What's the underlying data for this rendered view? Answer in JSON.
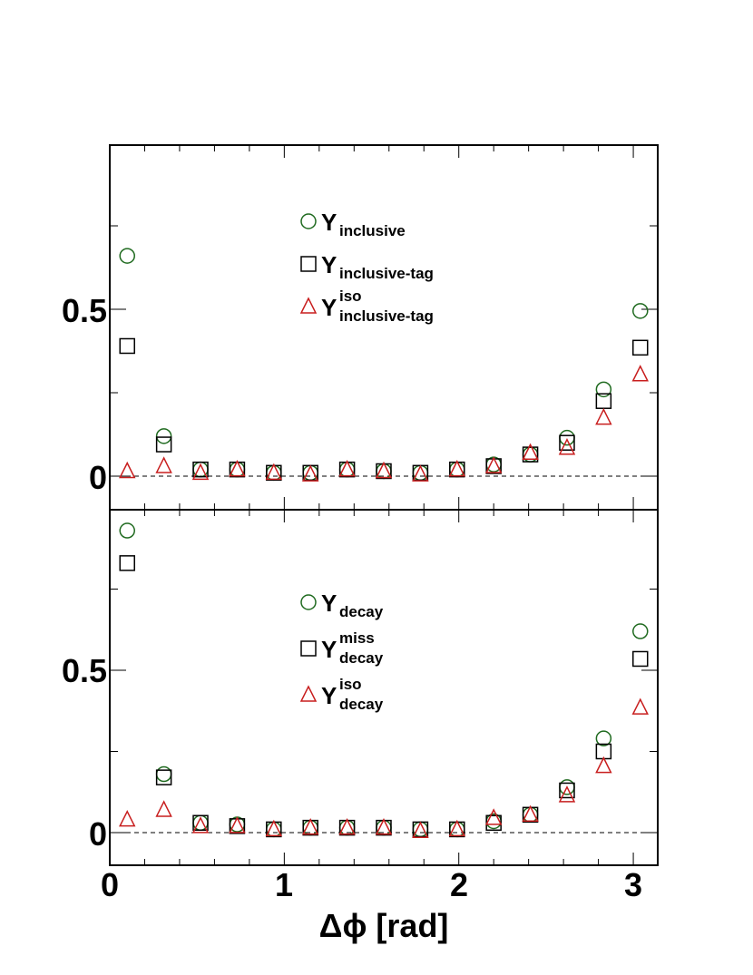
{
  "chart_data": [
    {
      "type": "scatter",
      "panel": "top",
      "x": [
        0.1,
        0.31,
        0.52,
        0.73,
        0.94,
        1.15,
        1.36,
        1.57,
        1.78,
        1.99,
        2.2,
        2.41,
        2.62,
        2.83,
        3.04
      ],
      "ylim": [
        -0.1,
        1.0
      ],
      "yticks": [
        "0",
        "0.5"
      ],
      "y_reference_line": 0,
      "legend_position": "top-center",
      "series": [
        {
          "name": "Y",
          "sub": "inclusive",
          "sup": "",
          "marker": "circle",
          "color": "#1f6a1f",
          "values": [
            0.66,
            0.12,
            0.02,
            0.02,
            0.01,
            0.01,
            0.02,
            0.015,
            0.01,
            0.02,
            0.035,
            0.065,
            0.115,
            0.26,
            0.495
          ]
        },
        {
          "name": "Y",
          "sub": "inclusive-tag",
          "sup": "",
          "marker": "square",
          "color": "#000000",
          "values": [
            0.39,
            0.095,
            0.02,
            0.02,
            0.01,
            0.01,
            0.02,
            0.015,
            0.01,
            0.02,
            0.03,
            0.065,
            0.1,
            0.225,
            0.385
          ]
        },
        {
          "name": "Y",
          "sub": "inclusive-tag",
          "sup": "iso",
          "marker": "triangle",
          "color": "#c81e1e",
          "values": [
            0.015,
            0.03,
            0.01,
            0.02,
            0.01,
            0.005,
            0.02,
            0.015,
            0.005,
            0.02,
            0.03,
            0.07,
            0.085,
            0.175,
            0.305
          ]
        }
      ]
    },
    {
      "type": "scatter",
      "panel": "bottom",
      "x": [
        0.1,
        0.31,
        0.52,
        0.73,
        0.94,
        1.15,
        1.36,
        1.57,
        1.78,
        1.99,
        2.2,
        2.41,
        2.62,
        2.83,
        3.04
      ],
      "xlim": [
        0,
        3.14
      ],
      "ylim": [
        -0.1,
        1.0
      ],
      "xticks": [
        "0",
        "1",
        "2",
        "3"
      ],
      "yticks": [
        "0",
        "0.5"
      ],
      "xlabel": "Δϕ [rad]",
      "y_reference_line": 0,
      "legend_position": "center",
      "series": [
        {
          "name": "Y",
          "sub": "decay",
          "sup": "",
          "marker": "circle",
          "color": "#1f6a1f",
          "values": [
            0.93,
            0.18,
            0.03,
            0.025,
            0.01,
            0.015,
            0.015,
            0.015,
            0.01,
            0.01,
            0.035,
            0.055,
            0.14,
            0.29,
            0.62
          ]
        },
        {
          "name": "Y",
          "sub": "decay",
          "sup": "miss",
          "marker": "square",
          "color": "#000000",
          "values": [
            0.83,
            0.17,
            0.03,
            0.02,
            0.01,
            0.015,
            0.015,
            0.015,
            0.01,
            0.01,
            0.03,
            0.055,
            0.13,
            0.25,
            0.535
          ]
        },
        {
          "name": "Y",
          "sub": "decay",
          "sup": "iso",
          "marker": "triangle",
          "color": "#c81e1e",
          "values": [
            0.04,
            0.07,
            0.02,
            0.02,
            0.01,
            0.015,
            0.015,
            0.015,
            0.005,
            0.01,
            0.045,
            0.055,
            0.115,
            0.205,
            0.385
          ]
        }
      ]
    }
  ]
}
